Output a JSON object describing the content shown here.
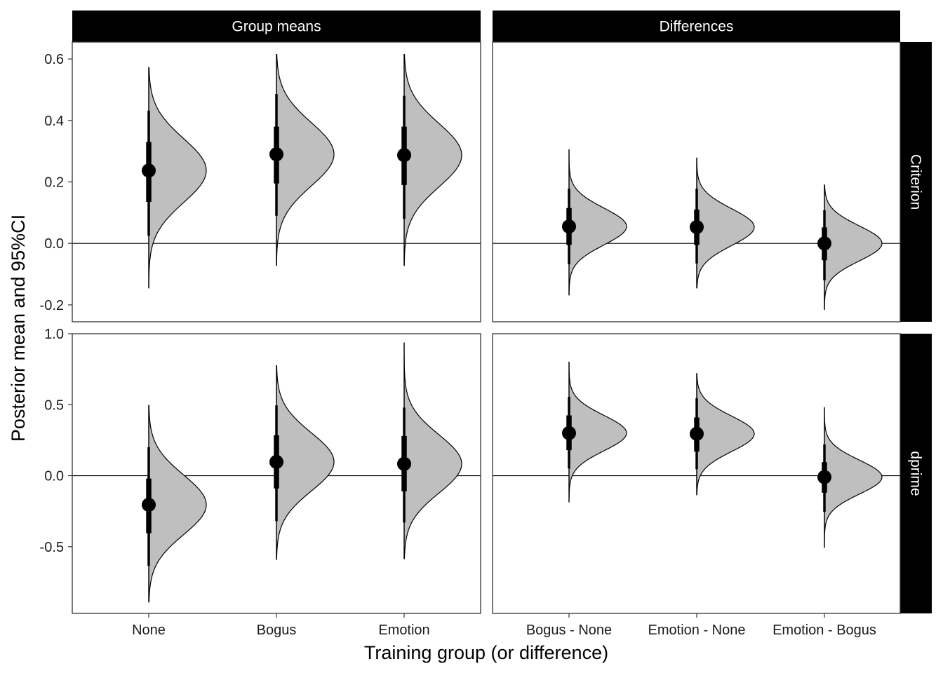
{
  "chart_data": {
    "type": "halfeye",
    "x_title": "Training group (or difference)",
    "y_title": "Posterior mean and 95%CI",
    "column_strips": [
      "Group means",
      "Differences"
    ],
    "row_strips": [
      "Criterion",
      "dprime"
    ],
    "column_categories": [
      [
        "None",
        "Bogus",
        "Emotion"
      ],
      [
        "Bogus - None",
        "Emotion - None",
        "Emotion - Bogus"
      ]
    ],
    "rows": [
      {
        "name": "Criterion",
        "ylim": [
          -0.255,
          0.655
        ],
        "ticks": [
          -0.2,
          0.0,
          0.2,
          0.4,
          0.6
        ],
        "tick_labels": [
          "-0.2",
          "0.0",
          "0.2",
          "0.4",
          "0.6"
        ]
      },
      {
        "name": "dprime",
        "ylim": [
          -0.97,
          1.0
        ],
        "ticks": [
          -0.5,
          0.0,
          0.5,
          1.0
        ],
        "tick_labels": [
          "-0.5",
          "0.0",
          "0.5",
          "1.0"
        ]
      }
    ],
    "reference_line": 0,
    "panels": [
      {
        "row": "Criterion",
        "col": "Group means",
        "items": [
          {
            "category": "None",
            "mean": 0.237,
            "ci66": [
              0.135,
              0.33
            ],
            "ci95": [
              0.025,
              0.432
            ],
            "range": [
              -0.145,
              0.572
            ],
            "sd": 0.104
          },
          {
            "category": "Bogus",
            "mean": 0.29,
            "ci66": [
              0.195,
              0.38
            ],
            "ci95": [
              0.09,
              0.486
            ],
            "range": [
              -0.072,
              0.615
            ],
            "sd": 0.103
          },
          {
            "category": "Emotion",
            "mean": 0.287,
            "ci66": [
              0.19,
              0.38
            ],
            "ci95": [
              0.08,
              0.48
            ],
            "range": [
              -0.072,
              0.615
            ],
            "sd": 0.103
          }
        ]
      },
      {
        "row": "Criterion",
        "col": "Differences",
        "items": [
          {
            "category": "Bogus - None",
            "mean": 0.055,
            "ci66": [
              -0.005,
              0.115
            ],
            "ci95": [
              -0.068,
              0.178
            ],
            "range": [
              -0.168,
              0.305
            ],
            "sd": 0.06
          },
          {
            "category": "Emotion - None",
            "mean": 0.053,
            "ci66": [
              -0.005,
              0.11
            ],
            "ci95": [
              -0.065,
              0.178
            ],
            "range": [
              -0.145,
              0.278
            ],
            "sd": 0.06
          },
          {
            "category": "Emotion - Bogus",
            "mean": 0.0,
            "ci66": [
              -0.055,
              0.052
            ],
            "ci95": [
              -0.12,
              0.108
            ],
            "range": [
              -0.215,
              0.19
            ],
            "sd": 0.057
          }
        ]
      },
      {
        "row": "dprime",
        "col": "Group means",
        "items": [
          {
            "category": "None",
            "mean": -0.205,
            "ci66": [
              -0.405,
              -0.02
            ],
            "ci95": [
              -0.635,
              0.2
            ],
            "range": [
              -0.89,
              0.495
            ],
            "sd": 0.21
          },
          {
            "category": "Bogus",
            "mean": 0.097,
            "ci66": [
              -0.09,
              0.285
            ],
            "ci95": [
              -0.32,
              0.495
            ],
            "range": [
              -0.59,
              0.775
            ],
            "sd": 0.205
          },
          {
            "category": "Emotion",
            "mean": 0.083,
            "ci66": [
              -0.11,
              0.28
            ],
            "ci95": [
              -0.33,
              0.48
            ],
            "range": [
              -0.585,
              0.935
            ],
            "sd": 0.205
          }
        ]
      },
      {
        "row": "dprime",
        "col": "Differences",
        "items": [
          {
            "category": "Bogus - None",
            "mean": 0.3,
            "ci66": [
              0.18,
              0.425
            ],
            "ci95": [
              0.05,
              0.555
            ],
            "range": [
              -0.185,
              0.8
            ],
            "sd": 0.125
          },
          {
            "category": "Emotion - None",
            "mean": 0.295,
            "ci66": [
              0.17,
              0.41
            ],
            "ci95": [
              0.045,
              0.545
            ],
            "range": [
              -0.135,
              0.72
            ],
            "sd": 0.125
          },
          {
            "category": "Emotion - Bogus",
            "mean": -0.01,
            "ci66": [
              -0.12,
              0.095
            ],
            "ci95": [
              -0.255,
              0.22
            ],
            "range": [
              -0.505,
              0.48
            ],
            "sd": 0.12
          }
        ]
      }
    ]
  }
}
